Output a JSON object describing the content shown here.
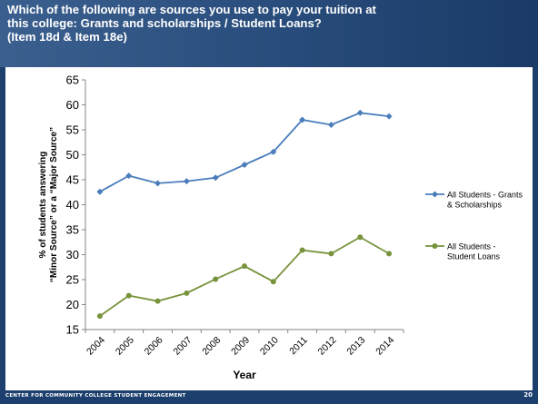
{
  "slide": {
    "title_lines": [
      "Which of the following are sources you use to pay your tuition at",
      "this college: Grants and scholarships / Student Loans?",
      "(Item 18d & Item 18e)"
    ],
    "footer": "CENTER FOR COMMUNITY COLLEGE STUDENT ENGAGEMENT",
    "page_number": "20"
  },
  "colors": {
    "grants": "#4a7ebb",
    "loans": "#77933c",
    "band": "#1c3f6e"
  },
  "chart_data": {
    "type": "line",
    "title": "",
    "xlabel": "Year",
    "ylabel_lines": [
      "% of students answering",
      "“Minor Source” or a “Major Source”"
    ],
    "x": [
      "2004",
      "2005",
      "2006",
      "2007",
      "2008",
      "2009",
      "2010",
      "2011",
      "2012",
      "2013",
      "2014"
    ],
    "ylim": [
      15,
      65
    ],
    "yticks": [
      15,
      20,
      25,
      30,
      35,
      40,
      45,
      50,
      55,
      60,
      65
    ],
    "grid": false,
    "legend_position": "right",
    "series": [
      {
        "name_lines": [
          "All Students - Grants",
          "& Scholarships"
        ],
        "color": "#4a7ebb",
        "marker": "diamond",
        "values": [
          42.6,
          45.8,
          44.3,
          44.7,
          45.4,
          48.0,
          50.6,
          57.0,
          56.0,
          58.4,
          57.7
        ]
      },
      {
        "name_lines": [
          "All Students -",
          "Student Loans"
        ],
        "color": "#77933c",
        "marker": "circle",
        "values": [
          17.7,
          21.8,
          20.7,
          22.3,
          25.1,
          27.7,
          24.6,
          30.9,
          30.2,
          33.5,
          30.2
        ]
      }
    ]
  }
}
